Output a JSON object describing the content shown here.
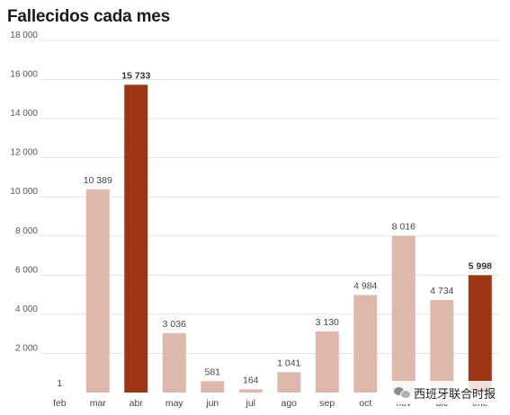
{
  "chart_data": {
    "type": "bar",
    "title": "Fallecidos cada mes",
    "categories": [
      "feb",
      "mar",
      "abr",
      "may",
      "jun",
      "jul",
      "ago",
      "sep",
      "oct",
      "nov",
      "dic",
      "ene"
    ],
    "values": [
      1,
      10389,
      15733,
      3036,
      581,
      164,
      1041,
      3130,
      4984,
      8016,
      4734,
      5998
    ],
    "value_labels": [
      "1",
      "10 389",
      "15 733",
      "3 036",
      "581",
      "164",
      "1 041",
      "3 130",
      "4 984",
      "8 016",
      "4 734",
      "5 998"
    ],
    "highlighted": [
      false,
      false,
      true,
      false,
      false,
      false,
      false,
      false,
      false,
      false,
      false,
      true
    ],
    "y_ticks": [
      2000,
      4000,
      6000,
      8000,
      10000,
      12000,
      14000,
      16000,
      18000
    ],
    "y_tick_labels": [
      "2 000",
      "4 000",
      "6 000",
      "8 000",
      "10 000",
      "12 000",
      "14 000",
      "16 000",
      "18 000"
    ],
    "ylim": [
      0,
      18000
    ],
    "grid": true,
    "colors": {
      "bar": "#deb8aa",
      "highlight": "#9b3514",
      "grid": "#e3e3e3"
    }
  },
  "watermark": {
    "text": "西班牙联合时报",
    "icon": "wechat-icon"
  }
}
